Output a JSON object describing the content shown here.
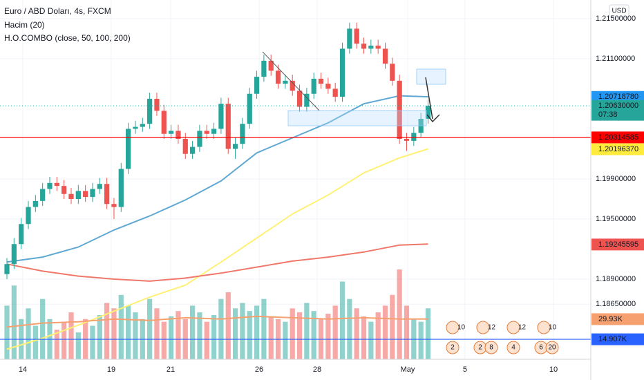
{
  "legend": [
    "Euro / ABD Doları, 4s, FXCM",
    "Hacim (20)",
    "H.O.COMBO (close, 50, 100, 200)"
  ],
  "currency": "USD",
  "chart_data": {
    "type": "candlestick",
    "xlim": [
      -0.97,
      81.8
    ],
    "ylim": [
      1.181,
      1.21686
    ],
    "xticks": [
      {
        "value": 2.22,
        "label": "14"
      },
      {
        "value": 14.62,
        "label": "19"
      },
      {
        "value": 22.94,
        "label": "21"
      },
      {
        "value": 35.33,
        "label": "26"
      },
      {
        "value": 43.46,
        "label": "28"
      },
      {
        "value": 56.15,
        "label": "May"
      },
      {
        "value": 64.18,
        "label": "5"
      },
      {
        "value": 76.57,
        "label": "10"
      }
    ],
    "yticks": [
      {
        "value": 1.215,
        "label": "1.21500000"
      },
      {
        "value": 1.211,
        "label": "1.21100000"
      },
      {
        "value": 1.199,
        "label": "1.19900000"
      },
      {
        "value": 1.195,
        "label": "1.19500000"
      },
      {
        "value": 1.189,
        "label": "1.18900000"
      },
      {
        "value": 1.1865,
        "label": "1.18650000"
      }
    ],
    "up_color": "#26a69a",
    "down_color": "#ef5350",
    "open": [
      1.1895,
      1.1905,
      1.1925,
      1.1945,
      1.1962,
      1.1968,
      1.198,
      1.1986,
      1.1983,
      1.1975,
      1.197,
      1.1978,
      1.1972,
      1.198,
      1.1985,
      1.1965,
      1.1962,
      1.2,
      1.204,
      1.2042,
      1.2045,
      1.207,
      1.2058,
      1.2035,
      1.2038,
      1.203,
      1.2015,
      1.2022,
      1.2038,
      1.2035,
      1.204,
      1.2065,
      1.202,
      1.2025,
      1.2045,
      1.2075,
      1.2092,
      1.2108,
      1.2098,
      1.2085,
      1.2088,
      1.2078,
      1.2062,
      1.2075,
      1.209,
      1.2085,
      1.208,
      1.2072,
      1.212,
      1.214,
      1.2125,
      1.212,
      1.2123,
      1.212,
      1.2105,
      1.2088,
      1.203,
      1.2028,
      1.2036,
      1.205
    ],
    "high": [
      1.1911,
      1.1931,
      1.1951,
      1.1968,
      1.1974,
      1.1986,
      1.1992,
      1.1992,
      1.1989,
      1.1981,
      1.1984,
      1.1984,
      1.1986,
      1.1991,
      1.1991,
      1.1971,
      1.2006,
      1.2046,
      1.2048,
      1.2051,
      1.2076,
      1.2076,
      1.2064,
      1.2044,
      1.2044,
      1.2036,
      1.2028,
      1.2044,
      1.2044,
      1.2046,
      1.2071,
      1.2071,
      1.2031,
      1.2051,
      1.2081,
      1.2098,
      1.2114,
      1.2114,
      1.2104,
      1.2094,
      1.2094,
      1.2084,
      1.2081,
      1.2096,
      1.2096,
      1.2091,
      1.2086,
      1.2126,
      1.2146,
      1.2146,
      1.2131,
      1.2129,
      1.2129,
      1.2126,
      1.2111,
      1.2094,
      1.2036,
      1.2042,
      1.2056,
      1.2069
    ],
    "low": [
      1.189,
      1.19,
      1.192,
      1.194,
      1.1957,
      1.1963,
      1.1975,
      1.1978,
      1.197,
      1.1965,
      1.1965,
      1.1967,
      1.1967,
      1.1975,
      1.196,
      1.195,
      1.1957,
      1.1995,
      1.2035,
      1.2037,
      1.204,
      1.2053,
      1.203,
      1.203,
      1.2025,
      1.201,
      1.201,
      1.2017,
      1.203,
      1.203,
      1.2035,
      1.2015,
      1.201,
      1.202,
      1.204,
      1.207,
      1.2087,
      1.2093,
      1.208,
      1.208,
      1.2073,
      1.2057,
      1.2057,
      1.207,
      1.208,
      1.2075,
      1.2067,
      1.2067,
      1.2115,
      1.212,
      1.2115,
      1.2115,
      1.2115,
      1.21,
      1.2083,
      1.2025,
      1.2018,
      1.2023,
      1.2031,
      1.2045
    ],
    "close": [
      1.1905,
      1.1925,
      1.1945,
      1.1962,
      1.1968,
      1.198,
      1.1986,
      1.1983,
      1.1975,
      1.197,
      1.1978,
      1.1972,
      1.198,
      1.1985,
      1.1965,
      1.1962,
      1.2,
      1.204,
      1.2042,
      1.2045,
      1.207,
      1.2058,
      1.2035,
      1.2038,
      1.203,
      1.2015,
      1.2022,
      1.2038,
      1.2035,
      1.204,
      1.2065,
      1.202,
      1.2025,
      1.2045,
      1.2075,
      1.2092,
      1.2108,
      1.2098,
      1.2085,
      1.2088,
      1.2078,
      1.2062,
      1.2075,
      1.209,
      1.2085,
      1.208,
      1.2072,
      1.212,
      1.214,
      1.2125,
      1.212,
      1.2123,
      1.212,
      1.2105,
      1.2088,
      1.203,
      1.2028,
      1.2036,
      1.205,
      1.2063
    ],
    "volume": [
      40,
      55,
      30,
      38,
      25,
      45,
      30,
      22,
      28,
      35,
      20,
      30,
      25,
      33,
      42,
      38,
      48,
      40,
      35,
      30,
      45,
      38,
      28,
      32,
      36,
      30,
      40,
      35,
      28,
      33,
      45,
      50,
      38,
      42,
      36,
      40,
      45,
      32,
      30,
      28,
      38,
      35,
      42,
      36,
      30,
      34,
      40,
      58,
      45,
      38,
      32,
      28,
      35,
      40,
      48,
      67,
      40,
      30,
      28,
      38
    ],
    "volume_ylim": [
      0,
      268
    ],
    "series": [
      {
        "color": "#5fa8d3",
        "x": [
          0,
          5,
          10,
          15,
          20,
          25,
          30,
          35,
          40,
          45,
          50,
          55,
          59
        ],
        "values": [
          1.1907,
          1.1912,
          1.1922,
          1.1939,
          1.1953,
          1.1969,
          1.1988,
          1.2016,
          1.2031,
          1.2046,
          1.2065,
          1.2073,
          1.2072
        ]
      },
      {
        "color": "#fff176",
        "x": [
          0,
          5,
          10,
          15,
          20,
          25,
          30,
          35,
          40,
          45,
          50,
          55,
          59
        ],
        "values": [
          1.182,
          1.1831,
          1.1844,
          1.1858,
          1.1872,
          1.1884,
          1.1907,
          1.1931,
          1.1955,
          1.1974,
          1.1996,
          1.2011,
          1.202
        ]
      },
      {
        "color": "#f0776a",
        "x": [
          0,
          5,
          10,
          15,
          20,
          25,
          30,
          35,
          40,
          45,
          50,
          55,
          59
        ],
        "values": [
          1.1905,
          1.1898,
          1.1893,
          1.189,
          1.1888,
          1.1891,
          1.1896,
          1.1902,
          1.1908,
          1.1912,
          1.1917,
          1.1924,
          1.1925
        ]
      },
      {
        "color": "#f5a06e",
        "axis": "volume",
        "x": [
          0,
          5,
          10,
          15,
          20,
          25,
          30,
          35,
          40,
          45,
          50,
          55,
          59
        ],
        "values": [
          24,
          27,
          28,
          30,
          29,
          31,
          30,
          32,
          31,
          30,
          31,
          30,
          30
        ]
      }
    ],
    "price_tags": [
      {
        "value": 1.2071878,
        "label": "1.20718780",
        "color": "#2196f3"
      },
      {
        "value": 1.2063,
        "label": "1.20630000",
        "sub": "07:38",
        "color": "#26a69a",
        "line": "dotted"
      },
      {
        "value": 1.20314585,
        "label": "1.20314585",
        "color": "#ff0000",
        "line": "solid"
      },
      {
        "value": 1.2019637,
        "label": "1.20196370",
        "color": "#ffeb3b"
      },
      {
        "value": 1.19245595,
        "label": "1.19245595",
        "color": "#ef5350"
      }
    ],
    "volume_tags": [
      {
        "value": 29.93,
        "label": "29.93K",
        "color": "#f5a06e"
      },
      {
        "value": 14.907,
        "label": "14.907K",
        "color": "#2962ff",
        "line": "solid"
      }
    ],
    "events": [
      [
        "10",
        "2"
      ],
      [
        "12",
        "2",
        "8"
      ],
      [
        "12",
        "4"
      ],
      [
        "10",
        "6",
        "20"
      ]
    ]
  }
}
